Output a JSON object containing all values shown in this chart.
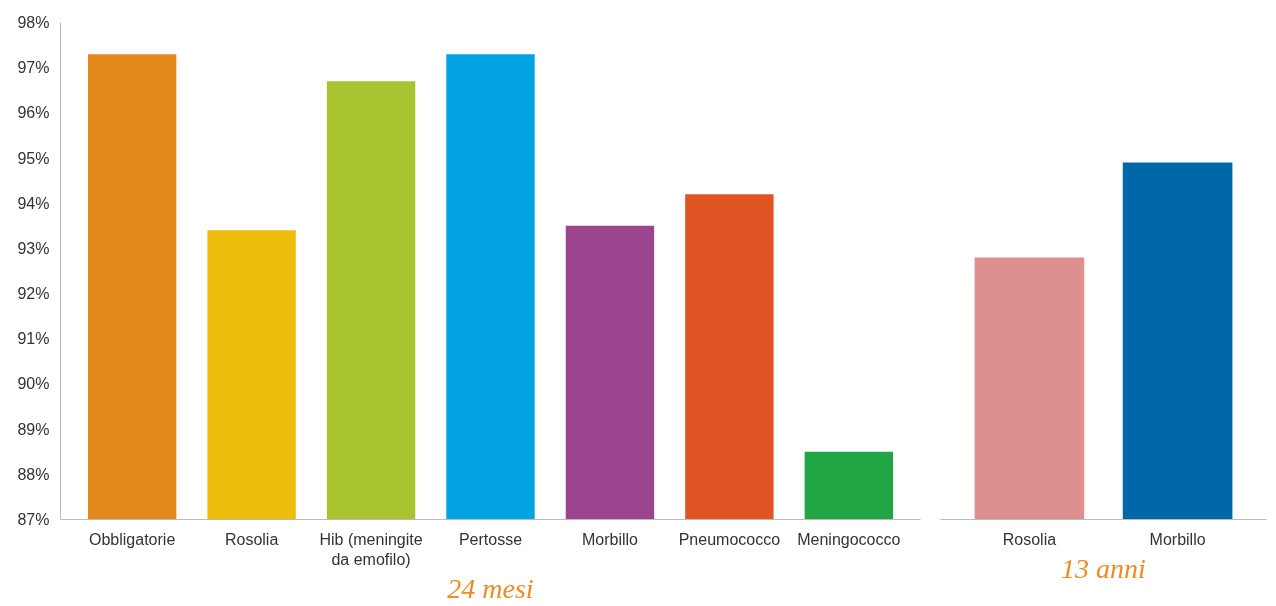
{
  "chart_data": [
    {
      "type": "bar",
      "xlabel": "24 mesi",
      "categories": [
        "Obbligatorie",
        "Rosolia",
        "Hib (meningite da emofilo)",
        "Pertosse",
        "Morbillo",
        "Pneumococco",
        "Meningococco"
      ],
      "values": [
        97.3,
        93.4,
        96.7,
        97.3,
        93.5,
        94.2,
        88.5
      ],
      "colors": [
        "#e5891d",
        "#eebd0b",
        "#a8c431",
        "#00a2e0",
        "#9d448f",
        "#e05322",
        "#21a646"
      ],
      "ylim": [
        87,
        98
      ],
      "yticks": [
        {
          "value": 87,
          "label": "87%"
        },
        {
          "value": 88,
          "label": "88%"
        },
        {
          "value": 89,
          "label": "89%"
        },
        {
          "value": 90,
          "label": "90%"
        },
        {
          "value": 91,
          "label": "91%"
        },
        {
          "value": 92,
          "label": "92%"
        },
        {
          "value": 93,
          "label": "93%"
        },
        {
          "value": 94,
          "label": "94%"
        },
        {
          "value": 95,
          "label": "95%"
        },
        {
          "value": 96,
          "label": "96%"
        },
        {
          "value": 97,
          "label": "97%"
        },
        {
          "value": 98,
          "label": "98%"
        }
      ],
      "grid": false
    },
    {
      "type": "bar",
      "xlabel": "13 anni",
      "categories": [
        "Rosolia",
        "Morbillo"
      ],
      "values": [
        92.8,
        94.9
      ],
      "colors": [
        "#de8f90",
        "#0068a9"
      ],
      "ylim": [
        87,
        98
      ],
      "tick_labels": "x",
      "grid": false
    }
  ]
}
